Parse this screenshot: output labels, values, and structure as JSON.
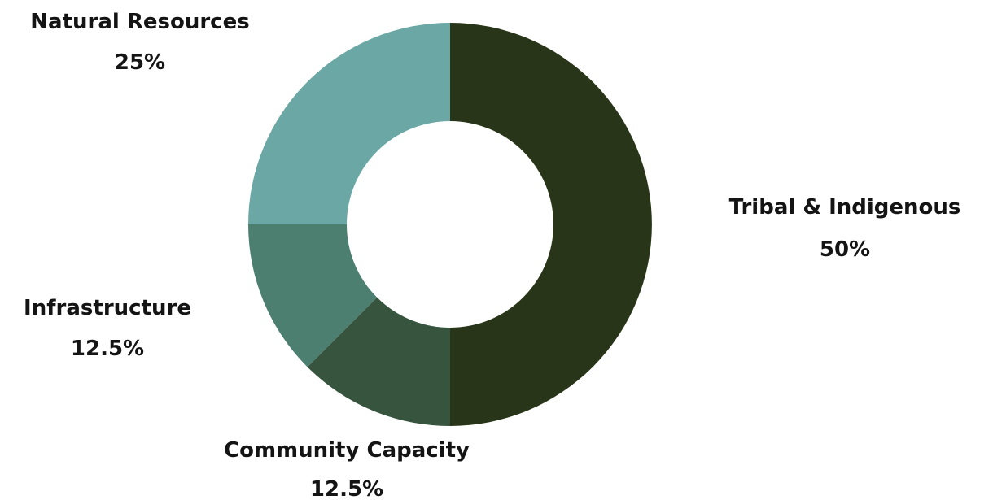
{
  "chart_data": {
    "type": "pie",
    "variant": "donut",
    "slices": [
      {
        "label": "Tribal & Indigenous",
        "value": 50,
        "value_label": "50%",
        "color": "#283518"
      },
      {
        "label": "Community Capacity",
        "value": 12.5,
        "value_label": "12.5%",
        "color": "#36543E"
      },
      {
        "label": "Infrastructure",
        "value": 12.5,
        "value_label": "12.5%",
        "color": "#4C7F6F"
      },
      {
        "label": "Natural Resources",
        "value": 25,
        "value_label": "25%",
        "color": "#6AA7A5"
      }
    ],
    "start_angle": "12 o'clock",
    "direction": "clockwise",
    "legend": "none",
    "labels_position": "outside"
  }
}
